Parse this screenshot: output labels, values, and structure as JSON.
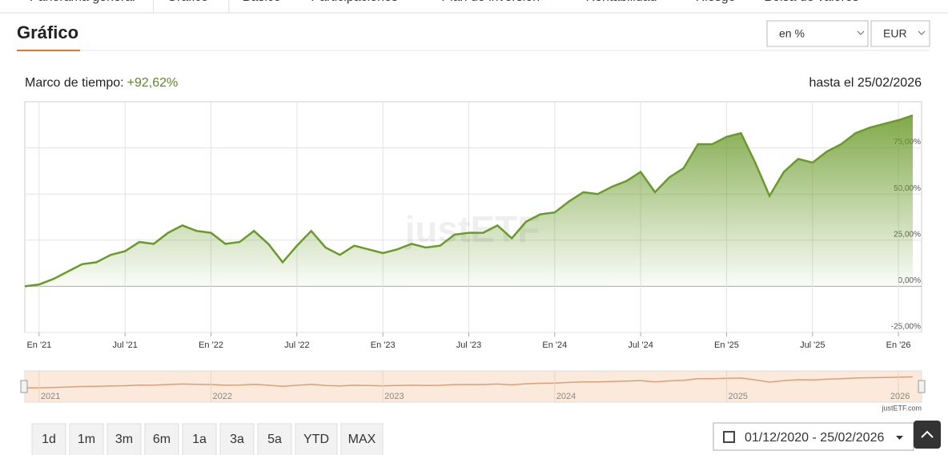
{
  "tabs": [
    "Panorama general",
    "Gráfico",
    "Básico",
    "Participaciones",
    "Plan de inversión",
    "Rentabilidad",
    "Riesgo",
    "Bolsa de valores"
  ],
  "active_tab": 1,
  "heading": "Gráfico",
  "selects": [
    "en %",
    "EUR"
  ],
  "chart_data": {
    "type": "line",
    "period_label": "Marco de tiempo:",
    "period_return": "+92,62%",
    "until_label": "hasta el 25/02/2026",
    "watermark": "justETF",
    "x": [
      "2020-12",
      "2021-01",
      "2021-02",
      "2021-03",
      "2021-04",
      "2021-05",
      "2021-06",
      "2021-07",
      "2021-08",
      "2021-09",
      "2021-10",
      "2021-11",
      "2021-12",
      "2022-01",
      "2022-02",
      "2022-03",
      "2022-04",
      "2022-05",
      "2022-06",
      "2022-07",
      "2022-08",
      "2022-09",
      "2022-10",
      "2022-11",
      "2022-12",
      "2023-01",
      "2023-02",
      "2023-03",
      "2023-04",
      "2023-05",
      "2023-06",
      "2023-07",
      "2023-08",
      "2023-09",
      "2023-10",
      "2023-11",
      "2023-12",
      "2024-01",
      "2024-02",
      "2024-03",
      "2024-04",
      "2024-05",
      "2024-06",
      "2024-07",
      "2024-08",
      "2024-09",
      "2024-10",
      "2024-11",
      "2024-12",
      "2025-01",
      "2025-02",
      "2025-03",
      "2025-04",
      "2025-05",
      "2025-06",
      "2025-07",
      "2025-08",
      "2025-09",
      "2025-10",
      "2025-11",
      "2025-12",
      "2026-01",
      "2026-02"
    ],
    "values": [
      0,
      1,
      4,
      8,
      12,
      13,
      17,
      19,
      24,
      23,
      29,
      33,
      30,
      29,
      23,
      24,
      30,
      23,
      13,
      22,
      30,
      21,
      17,
      22,
      20,
      18,
      20,
      23,
      21,
      22,
      28,
      29,
      29,
      33,
      26,
      35,
      39,
      40,
      46,
      51,
      50,
      54,
      57,
      62,
      51,
      59,
      64,
      77,
      77,
      81,
      83,
      67,
      49,
      62,
      69,
      67,
      73,
      77,
      83,
      86,
      88,
      90,
      92.62
    ],
    "color": "#6a9a2a",
    "xlim": [
      "2020-12",
      "2026-02"
    ],
    "xticks": [
      {
        "value": "2021-01",
        "label": "En '21"
      },
      {
        "value": "2021-07",
        "label": "Jul '21"
      },
      {
        "value": "2022-01",
        "label": "En '22"
      },
      {
        "value": "2022-07",
        "label": "Jul '22"
      },
      {
        "value": "2023-01",
        "label": "En '23"
      },
      {
        "value": "2023-07",
        "label": "Jul '23"
      },
      {
        "value": "2024-01",
        "label": "En '24"
      },
      {
        "value": "2024-07",
        "label": "Jul '24"
      },
      {
        "value": "2025-01",
        "label": "En '25"
      },
      {
        "value": "2025-07",
        "label": "Jul '25"
      },
      {
        "value": "2026-01",
        "label": "En '26"
      }
    ],
    "ylim": [
      -25,
      100
    ],
    "yticks": [
      {
        "value": -25,
        "label": "-25,00%"
      },
      {
        "value": 0,
        "label": "0,00%"
      },
      {
        "value": 25,
        "label": "25,00%"
      },
      {
        "value": 50,
        "label": "50,00%"
      },
      {
        "value": 75,
        "label": "75,00%"
      }
    ],
    "grid": true,
    "navigator_labels": [
      "2021",
      "2022",
      "2023",
      "2024",
      "2025",
      "2026"
    ],
    "credit": "justETF.com"
  },
  "range_buttons": [
    "1d",
    "1m",
    "3m",
    "6m",
    "1a",
    "3a",
    "5a",
    "YTD",
    "MAX"
  ],
  "date_range": "01/12/2020 - 25/02/2026"
}
